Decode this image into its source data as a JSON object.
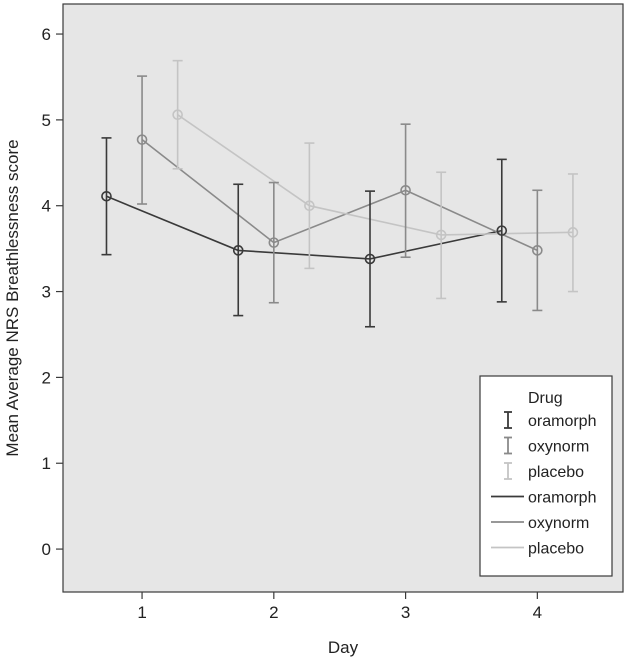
{
  "chart_data": {
    "type": "line",
    "title": "",
    "xlabel": "Day",
    "ylabel": "Mean Average NRS Breathlessness score",
    "x_ticks": [
      "1",
      "2",
      "3",
      "4"
    ],
    "y_ticks": [
      "0",
      "1",
      "2",
      "3",
      "4",
      "5",
      "6"
    ],
    "xlim": [
      0.4,
      4.65
    ],
    "ylim": [
      -0.5,
      6.35
    ],
    "grid": false,
    "legend": {
      "title": "Drug",
      "position": "bottom-right",
      "errorbar_entries": [
        "oramorph",
        "oxynorm",
        "placebo"
      ],
      "line_entries": [
        "oramorph",
        "oxynorm",
        "placebo"
      ]
    },
    "series": [
      {
        "name": "oramorph",
        "color": "#3a3a3a",
        "x": [
          0.73,
          1.73,
          2.73,
          3.73
        ],
        "y": [
          4.11,
          3.48,
          3.38,
          3.71
        ],
        "lower": [
          3.43,
          2.72,
          2.59,
          2.88
        ],
        "upper": [
          4.79,
          4.25,
          4.17,
          4.54
        ]
      },
      {
        "name": "oxynorm",
        "color": "#8a8a8a",
        "x": [
          1.0,
          2.0,
          3.0,
          4.0
        ],
        "y": [
          4.77,
          3.57,
          4.18,
          3.48
        ],
        "lower": [
          4.02,
          2.87,
          3.4,
          2.78
        ],
        "upper": [
          5.51,
          4.27,
          4.95,
          4.18
        ]
      },
      {
        "name": "placebo",
        "color": "#c4c4c4",
        "x": [
          1.27,
          2.27,
          3.27,
          4.27
        ],
        "y": [
          5.06,
          4.0,
          3.66,
          3.69
        ],
        "lower": [
          4.43,
          3.27,
          2.92,
          3.0
        ],
        "upper": [
          5.69,
          4.73,
          4.39,
          4.37
        ]
      }
    ],
    "plot_background": "#e6e6e6"
  }
}
